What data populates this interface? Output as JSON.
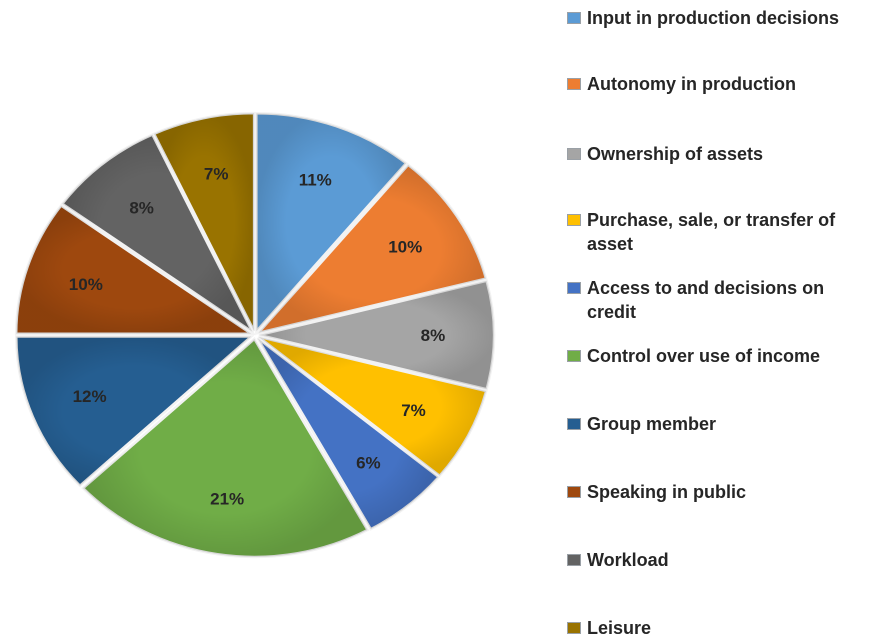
{
  "chart_data": {
    "type": "pie",
    "title": "",
    "categories": [
      "Input in production decisions",
      "Autonomy in production",
      "Ownership of assets",
      "Purchase, sale, or transfer of asset",
      "Access to and decisions on credit",
      "Control over use of income",
      "Group member",
      "Speaking in public",
      "Workload",
      "Leisure"
    ],
    "values": [
      11,
      10,
      8,
      7,
      6,
      21,
      12,
      10,
      8,
      7
    ],
    "value_labels": [
      "11%",
      "10%",
      "8%",
      "7%",
      "6%",
      "21%",
      "12%",
      "10%",
      "8%",
      "7%"
    ],
    "colors": [
      "#5B9BD5",
      "#ED7D31",
      "#A5A5A5",
      "#FFC000",
      "#4472C4",
      "#70AD47",
      "#255E91",
      "#9E480E",
      "#636363",
      "#997300"
    ],
    "legend_position": "right"
  }
}
